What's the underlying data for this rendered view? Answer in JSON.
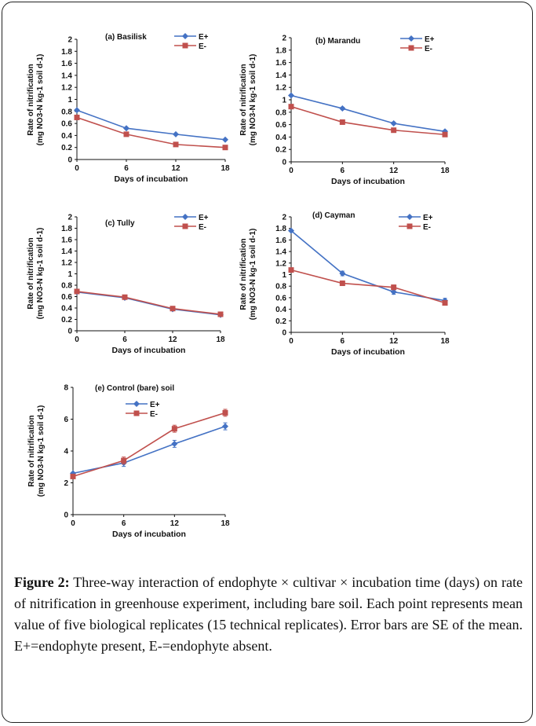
{
  "figure": {
    "x_ticks": [
      "0",
      "6",
      "12",
      "18"
    ],
    "xlabel": "Days of incubation",
    "ylabel_line1": "Rate of nitrification",
    "ylabel_line2": "(mg NO3-N kg-1 soil d-1)",
    "legend_eplus": "E+",
    "legend_eminus": "E-"
  },
  "colors": {
    "e_plus": "#4472C4",
    "e_minus": "#C0504D"
  },
  "chart_data": [
    {
      "type": "line",
      "panel_label": "(a)   Basilisk",
      "x": [
        0,
        6,
        12,
        18
      ],
      "y_ticks": [
        "0",
        "0.2",
        "0.4",
        "0.6",
        "0.8",
        "1",
        "1.2",
        "1.4",
        "1.6",
        "1.8",
        "2"
      ],
      "ylim": [
        0,
        2
      ],
      "series": [
        {
          "name": "E+",
          "values": [
            0.82,
            0.52,
            0.42,
            0.33
          ]
        },
        {
          "name": "E-",
          "values": [
            0.7,
            0.42,
            0.25,
            0.2
          ]
        }
      ],
      "xlabel": "Days of incubation",
      "ylabel": "Rate of nitrification (mg NO3-N kg-1 soil d-1)",
      "legend": "top-right"
    },
    {
      "type": "line",
      "panel_label": "(b)   Marandu",
      "x": [
        0,
        6,
        12,
        18
      ],
      "y_ticks": [
        "0",
        "0.2",
        "0.4",
        "0.6",
        "0.8",
        "1",
        "1.2",
        "1.4",
        "1.6",
        "1.8",
        "2"
      ],
      "ylim": [
        0,
        2
      ],
      "series": [
        {
          "name": "E+",
          "values": [
            1.07,
            0.86,
            0.62,
            0.49
          ]
        },
        {
          "name": "E-",
          "values": [
            0.89,
            0.64,
            0.51,
            0.44
          ]
        }
      ],
      "xlabel": "Days of incubation",
      "ylabel": "Rate of nitrification (mg NO3-N kg-1 soil d-1)",
      "legend": "top-right"
    },
    {
      "type": "line",
      "panel_label": "(c)   Tully",
      "x": [
        0,
        6,
        12,
        18
      ],
      "y_ticks": [
        "0",
        "0.2",
        "0.4",
        "0.6",
        "0.8",
        "1",
        "1.2",
        "1.4",
        "1.6",
        "1.8",
        "2"
      ],
      "ylim": [
        0,
        2
      ],
      "series": [
        {
          "name": "E+",
          "values": [
            0.68,
            0.58,
            0.38,
            0.28
          ]
        },
        {
          "name": "E-",
          "values": [
            0.69,
            0.59,
            0.39,
            0.29
          ]
        }
      ],
      "xlabel": "Days of incubation",
      "ylabel": "Rate of nitrification (mg NO3-N kg-1 soil d-1)",
      "legend": "top-right"
    },
    {
      "type": "line",
      "panel_label": "(d)   Cayman",
      "x": [
        0,
        6,
        12,
        18
      ],
      "y_ticks": [
        "0",
        "0.2",
        "0.4",
        "0.6",
        "0.8",
        "1",
        "1.2",
        "1.4",
        "1.6",
        "1.8",
        "2"
      ],
      "ylim": [
        0,
        2
      ],
      "series": [
        {
          "name": "E+",
          "values": [
            1.76,
            1.02,
            0.7,
            0.55
          ]
        },
        {
          "name": "E-",
          "values": [
            1.08,
            0.85,
            0.78,
            0.51
          ]
        }
      ],
      "xlabel": "Days of incubation",
      "ylabel": "Rate of nitrification (mg NO3-N kg-1 soil d-1)",
      "legend": "top-right"
    },
    {
      "type": "line",
      "panel_label": "(e)   Control (bare) soil",
      "x": [
        0,
        6,
        12,
        18
      ],
      "y_ticks": [
        "0",
        "2",
        "4",
        "6",
        "8"
      ],
      "ylim": [
        0,
        8
      ],
      "series": [
        {
          "name": "E+",
          "values": [
            2.6,
            3.25,
            4.45,
            5.55
          ]
        },
        {
          "name": "E-",
          "values": [
            2.4,
            3.4,
            5.4,
            6.4
          ]
        }
      ],
      "xlabel": "Days of incubation",
      "ylabel": "Rate of nitrification (mg NO3-N kg-1 soil d-1)",
      "legend": "top-center"
    }
  ],
  "caption": {
    "label": "Figure 2:",
    "text": " Three-way interaction of endophyte × cultivar × incubation time (days) on rate of nitrification in greenhouse experiment, including bare soil. Each point represents mean value of five biological replicates (15 technical replicates). Error bars are SE of the mean. E+=endophyte present, E-=endophyte absent."
  }
}
